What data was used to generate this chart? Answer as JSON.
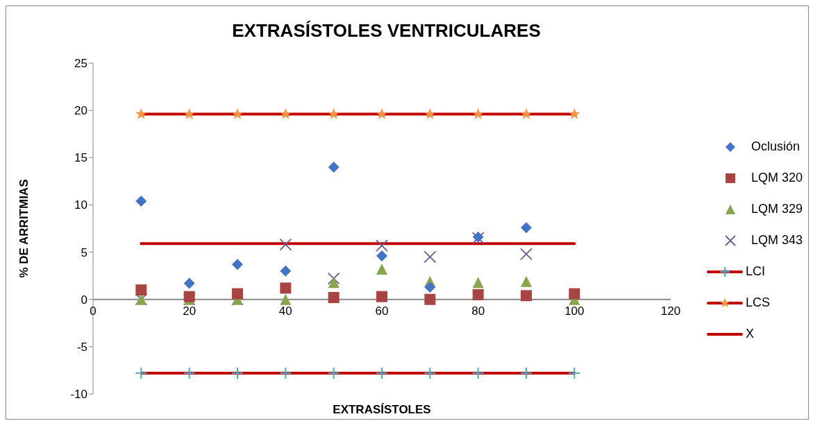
{
  "chart_data": {
    "type": "scatter",
    "title": "EXTRASÍSTOLES VENTRICULARES",
    "xlabel": "EXTRASÍSTOLES",
    "ylabel": "% DE ARRITMIAS",
    "x": [
      10,
      20,
      30,
      40,
      50,
      60,
      70,
      80,
      90,
      100
    ],
    "xlim": [
      0,
      120
    ],
    "xticks": [
      0,
      20,
      40,
      60,
      80,
      100,
      120
    ],
    "ylim": [
      -10,
      25
    ],
    "yticks": [
      -10,
      -5,
      0,
      5,
      10,
      15,
      20,
      25
    ],
    "grid": false,
    "legend": "right",
    "series": [
      {
        "name": "Oclusión",
        "color": "#4472c4",
        "marker": "diamond",
        "values": [
          10.4,
          1.7,
          3.7,
          3.0,
          14.0,
          4.6,
          1.3,
          6.6,
          7.6,
          null
        ]
      },
      {
        "name": "LQM 320",
        "color": "#a84543",
        "marker": "square",
        "values": [
          1.0,
          0.3,
          0.6,
          1.2,
          0.2,
          0.3,
          0.0,
          0.5,
          0.4,
          0.6
        ]
      },
      {
        "name": "LQM 329",
        "color": "#89a54e",
        "marker": "triangle",
        "values": [
          0,
          0,
          0,
          0,
          1.8,
          3.2,
          1.9,
          1.8,
          1.9,
          0
        ]
      },
      {
        "name": "LQM 343",
        "color": "#71588f",
        "marker": "cross",
        "values": [
          0,
          0,
          0,
          5.8,
          2.2,
          5.7,
          4.5,
          6.5,
          4.8,
          null
        ]
      },
      {
        "name": "LCI",
        "type": "line",
        "color": "#c00000",
        "marker": "plus",
        "colors": [
          "#4bacc6",
          "#4bacc6",
          "#4bacc6",
          "#4bacc6",
          "#4bacc6",
          "#4bacc6",
          "#4bacc6",
          "#4bacc6",
          "#4bacc6",
          "#4bacc6"
        ],
        "values": [
          -7.8,
          -7.8,
          -7.8,
          -7.8,
          -7.8,
          -7.8,
          -7.8,
          -7.8,
          -7.8,
          -7.8
        ]
      },
      {
        "name": "LCS",
        "type": "line",
        "color": "#c00000",
        "marker": "star",
        "colors": [
          "#f79646",
          "#f79646",
          "#f79646",
          "#f79646",
          "#f79646",
          "#f79646",
          "#f79646",
          "#f79646",
          "#f79646",
          "#f79646"
        ],
        "values": [
          19.6,
          19.6,
          19.6,
          19.6,
          19.6,
          19.6,
          19.6,
          19.6,
          19.6,
          19.6
        ]
      },
      {
        "name": "X",
        "type": "line",
        "color": "#c00000",
        "marker": "none",
        "values": [
          5.9,
          5.9,
          5.9,
          5.9,
          5.9,
          5.9,
          5.9,
          5.9,
          5.9,
          5.9
        ]
      }
    ]
  }
}
